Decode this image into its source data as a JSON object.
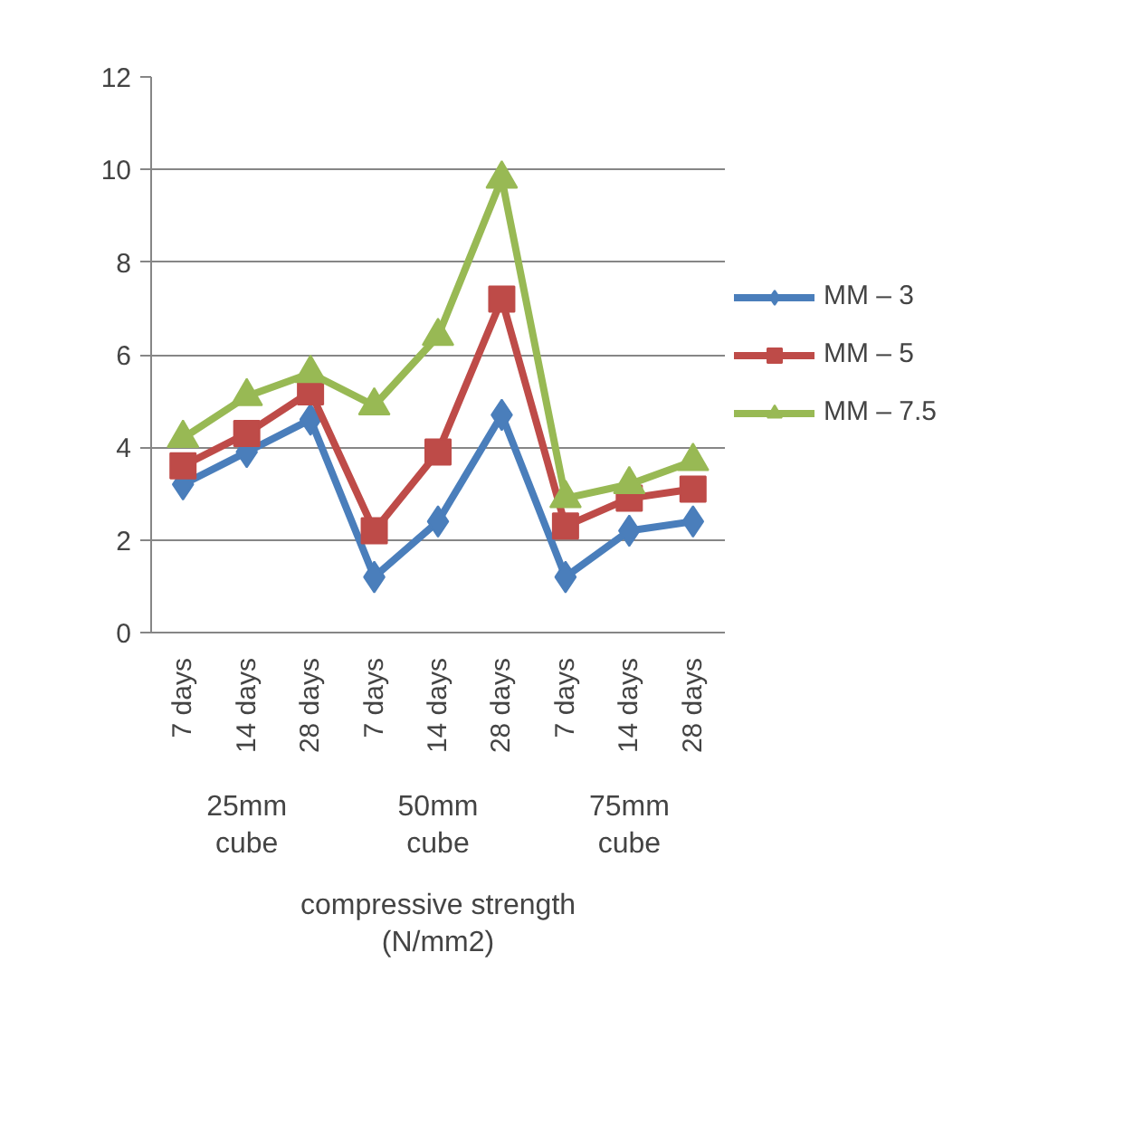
{
  "chart_data": {
    "type": "line",
    "categories": [
      "7 days",
      "14 days",
      "28 days",
      "7 days",
      "14 days",
      "28 days",
      "7 days",
      "14 days",
      "28 days"
    ],
    "xlabel": "compressive strength (N/mm2)",
    "annotations": [
      "25mm cube",
      "50mm cube",
      "75mm cube"
    ],
    "series": [
      {
        "name": "MM – 3",
        "color": "#4a7ebb",
        "marker": "diamond",
        "values": [
          3.2,
          3.9,
          4.6,
          1.2,
          2.4,
          4.7,
          1.2,
          2.2,
          2.4
        ]
      },
      {
        "name": "MM – 5",
        "color": "#be4b48",
        "marker": "square",
        "values": [
          3.6,
          4.3,
          5.2,
          2.2,
          3.9,
          7.2,
          2.3,
          2.9,
          3.1
        ]
      },
      {
        "name": "MM – 7.5",
        "color": "#98b954",
        "marker": "triangle",
        "values": [
          4.2,
          5.1,
          5.6,
          4.9,
          6.4,
          9.8,
          2.9,
          3.2,
          3.7
        ]
      }
    ],
    "ylim": [
      0,
      12
    ],
    "yticks": [
      0,
      2,
      4,
      6,
      8,
      10,
      12
    ],
    "grid": "y",
    "legend": "right"
  }
}
